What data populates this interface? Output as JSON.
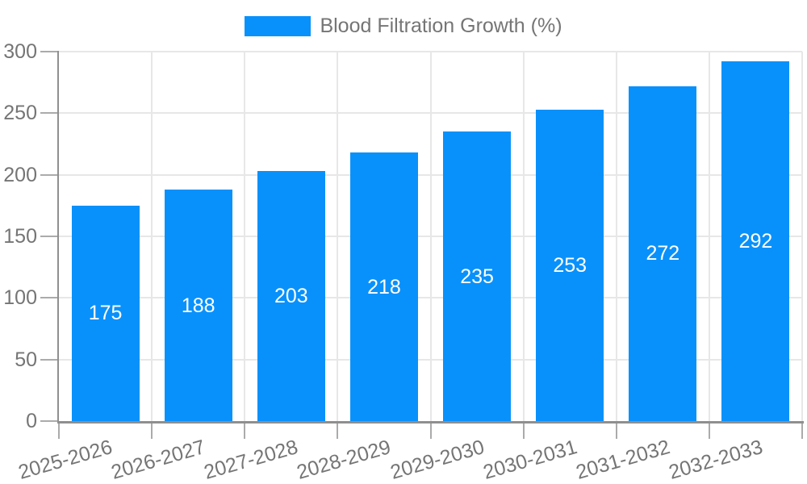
{
  "chart_data": {
    "type": "bar",
    "series_name": "Blood Filtration Growth (%)",
    "categories": [
      "2025-2026",
      "2026-2027",
      "2027-2028",
      "2028-2029",
      "2029-2030",
      "2030-2031",
      "2031-2032",
      "2032-2033"
    ],
    "values": [
      175,
      188,
      203,
      218,
      235,
      253,
      272,
      292
    ],
    "title": "Blood Filtration Growth (%)",
    "xlabel": "",
    "ylabel": "",
    "ylim": [
      0,
      300
    ],
    "yticks": [
      0,
      50,
      100,
      150,
      200,
      250,
      300
    ],
    "grid": true,
    "legend_position": "top",
    "value_labels_position": "inside-center"
  },
  "colors": {
    "bar": "#0991fb",
    "value_label": "#ffffff",
    "axis_text": "#757575",
    "legend_text": "#757575",
    "grid": "#e7e7e7",
    "axis_line": "#8f8f8f",
    "tick": "#ababab",
    "background": "#ffffff"
  }
}
